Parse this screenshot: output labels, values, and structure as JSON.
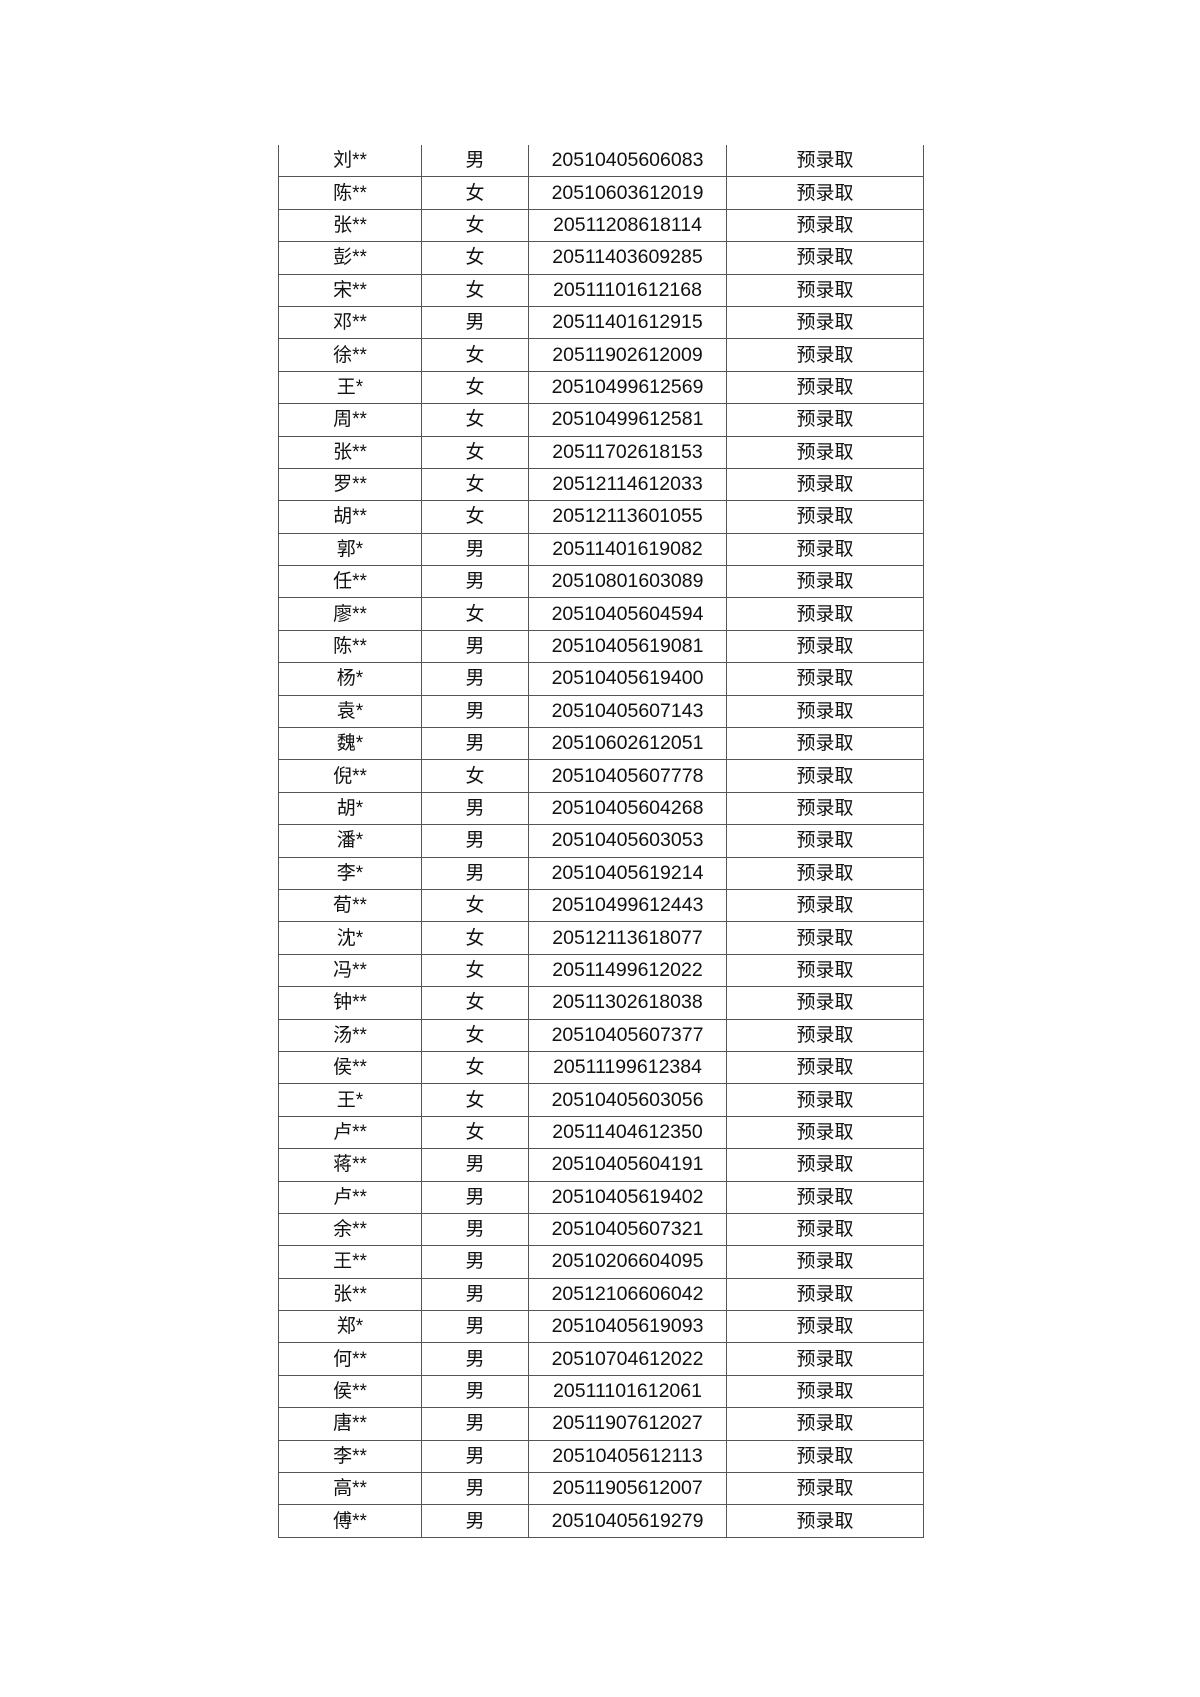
{
  "table": {
    "rows": [
      [
        "刘**",
        "男",
        "20510405606083",
        "预录取"
      ],
      [
        "陈**",
        "女",
        "20510603612019",
        "预录取"
      ],
      [
        "张**",
        "女",
        "20511208618114",
        "预录取"
      ],
      [
        "彭**",
        "女",
        "20511403609285",
        "预录取"
      ],
      [
        "宋**",
        "女",
        "20511101612168",
        "预录取"
      ],
      [
        "邓**",
        "男",
        "20511401612915",
        "预录取"
      ],
      [
        "徐**",
        "女",
        "20511902612009",
        "预录取"
      ],
      [
        "王*",
        "女",
        "20510499612569",
        "预录取"
      ],
      [
        "周**",
        "女",
        "20510499612581",
        "预录取"
      ],
      [
        "张**",
        "女",
        "20511702618153",
        "预录取"
      ],
      [
        "罗**",
        "女",
        "20512114612033",
        "预录取"
      ],
      [
        "胡**",
        "女",
        "20512113601055",
        "预录取"
      ],
      [
        "郭*",
        "男",
        "20511401619082",
        "预录取"
      ],
      [
        "任**",
        "男",
        "20510801603089",
        "预录取"
      ],
      [
        "廖**",
        "女",
        "20510405604594",
        "预录取"
      ],
      [
        "陈**",
        "男",
        "20510405619081",
        "预录取"
      ],
      [
        "杨*",
        "男",
        "20510405619400",
        "预录取"
      ],
      [
        "袁*",
        "男",
        "20510405607143",
        "预录取"
      ],
      [
        "魏*",
        "男",
        "20510602612051",
        "预录取"
      ],
      [
        "倪**",
        "女",
        "20510405607778",
        "预录取"
      ],
      [
        "胡*",
        "男",
        "20510405604268",
        "预录取"
      ],
      [
        "潘*",
        "男",
        "20510405603053",
        "预录取"
      ],
      [
        "李*",
        "男",
        "20510405619214",
        "预录取"
      ],
      [
        "荀**",
        "女",
        "20510499612443",
        "预录取"
      ],
      [
        "沈*",
        "女",
        "20512113618077",
        "预录取"
      ],
      [
        "冯**",
        "女",
        "20511499612022",
        "预录取"
      ],
      [
        "钟**",
        "女",
        "20511302618038",
        "预录取"
      ],
      [
        "汤**",
        "女",
        "20510405607377",
        "预录取"
      ],
      [
        "侯**",
        "女",
        "20511199612384",
        "预录取"
      ],
      [
        "王*",
        "女",
        "20510405603056",
        "预录取"
      ],
      [
        "卢**",
        "女",
        "20511404612350",
        "预录取"
      ],
      [
        "蒋**",
        "男",
        "20510405604191",
        "预录取"
      ],
      [
        "卢**",
        "男",
        "20510405619402",
        "预录取"
      ],
      [
        "余**",
        "男",
        "20510405607321",
        "预录取"
      ],
      [
        "王**",
        "男",
        "20510206604095",
        "预录取"
      ],
      [
        "张**",
        "男",
        "20512106606042",
        "预录取"
      ],
      [
        "郑*",
        "男",
        "20510405619093",
        "预录取"
      ],
      [
        "何**",
        "男",
        "20510704612022",
        "预录取"
      ],
      [
        "侯**",
        "男",
        "20511101612061",
        "预录取"
      ],
      [
        "唐**",
        "男",
        "20511907612027",
        "预录取"
      ],
      [
        "李**",
        "男",
        "20510405612113",
        "预录取"
      ],
      [
        "高**",
        "男",
        "20511905612007",
        "预录取"
      ],
      [
        "傅**",
        "男",
        "20510405619279",
        "预录取"
      ]
    ]
  }
}
